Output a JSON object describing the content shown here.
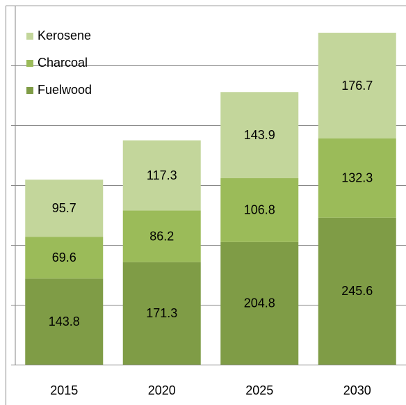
{
  "chart_data": {
    "type": "stacked_bar",
    "categories": [
      "2015",
      "2020",
      "2025",
      "2030"
    ],
    "series": [
      {
        "name": "Fuelwood",
        "color": "#7f9c46",
        "values": [
          143.8,
          171.3,
          204.8,
          245.6
        ]
      },
      {
        "name": "Charcoal",
        "color": "#9bbb59",
        "values": [
          69.6,
          86.2,
          106.8,
          132.3
        ]
      },
      {
        "name": "Kerosene",
        "color": "#c3d69b",
        "values": [
          95.7,
          117.3,
          143.9,
          176.7
        ]
      }
    ],
    "ylim": [
      0,
      600
    ],
    "yticks": [
      0,
      100,
      200,
      300,
      400,
      500
    ],
    "grid": true,
    "legend": "top-left"
  }
}
